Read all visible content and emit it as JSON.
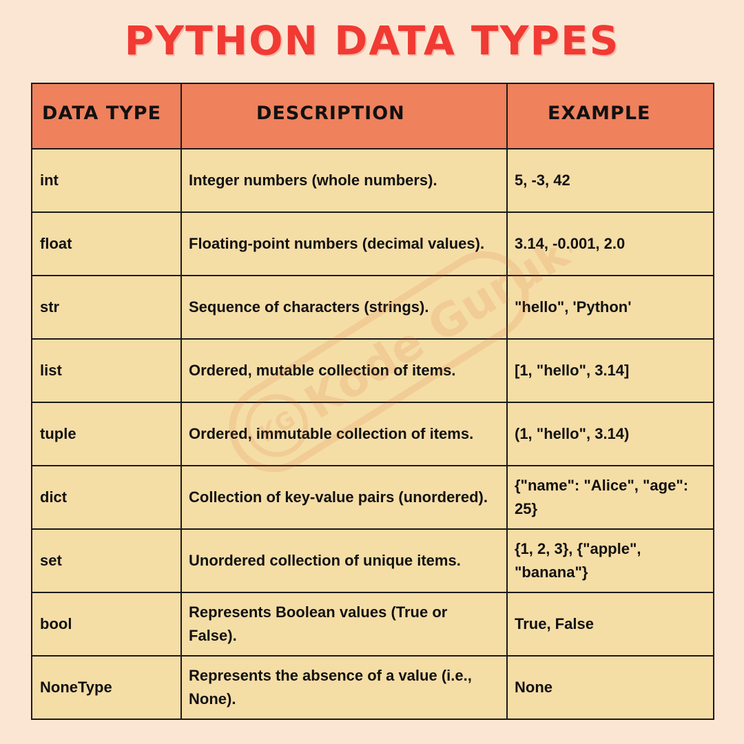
{
  "title": "PYTHON DATA TYPES",
  "table": {
    "headers": [
      "DATA TYPE",
      "DESCRIPTION",
      "EXAMPLE"
    ],
    "rows": [
      {
        "type": "int",
        "description": "Integer numbers (whole numbers).",
        "example": "5, -3, 42"
      },
      {
        "type": "float",
        "description": "Floating-point numbers (decimal values).",
        "example": "3.14, -0.001, 2.0"
      },
      {
        "type": "str",
        "description": "Sequence of characters (strings).",
        "example": "\"hello\", 'Python'"
      },
      {
        "type": "list",
        "description": "Ordered, mutable collection of items.",
        "example": "[1, \"hello\", 3.14]"
      },
      {
        "type": "tuple",
        "description": "Ordered, immutable collection of items.",
        "example": "(1, \"hello\", 3.14)"
      },
      {
        "type": "dict",
        "description": "Collection of key-value pairs (unordered).",
        "example": "{\"name\": \"Alice\", \"age\": 25}"
      },
      {
        "type": "set",
        "description": "Unordered collection of unique items.",
        "example": "{1, 2, 3}, {\"apple\", \"banana\"}"
      },
      {
        "type": "bool",
        "description": "Represents Boolean values (True or False).",
        "example": "True, False"
      },
      {
        "type": "NoneType",
        "description": "Represents the absence of a value (i.e., None).",
        "example": "None"
      }
    ]
  },
  "watermark": {
    "text": "Kode Gurukul",
    "badge": "KG"
  },
  "colors": {
    "background": "#fbe6d3",
    "title": "#f03a33",
    "header_fill": "#ef815d",
    "cell_fill": "#f5dda6",
    "border": "#1a1a1a"
  }
}
